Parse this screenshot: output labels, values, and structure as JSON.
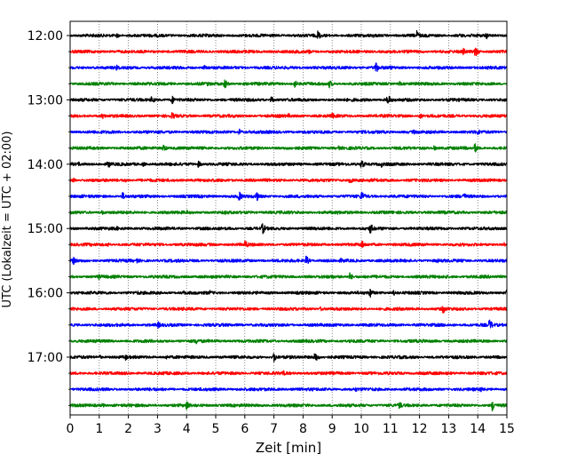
{
  "chart_data": {
    "type": "line",
    "title": "",
    "xlabel": "Zeit  [min]",
    "ylabel": "UTC (Lokalzeit = UTC + 02:00)",
    "xlim": [
      0,
      15
    ],
    "x_ticks": [
      0,
      1,
      2,
      3,
      4,
      5,
      6,
      7,
      8,
      9,
      10,
      11,
      12,
      13,
      14,
      15
    ],
    "y_tick_labels": [
      "12:00",
      "13:00",
      "14:00",
      "15:00",
      "16:00",
      "17:00"
    ],
    "grid": "vertical dotted",
    "colors": [
      "#000000",
      "#ff0000",
      "#0000ff",
      "#008000"
    ],
    "row_start": "12:00",
    "row_minutes": 15,
    "series": [
      {
        "start": "12:00",
        "color": "#000000",
        "events": [
          [
            1.6,
            3
          ],
          [
            8.5,
            6
          ],
          [
            10.4,
            3
          ],
          [
            11.9,
            6
          ],
          [
            13.4,
            3
          ],
          [
            14.3,
            4
          ]
        ]
      },
      {
        "start": "12:15",
        "color": "#ff0000",
        "events": [
          [
            2.5,
            2
          ],
          [
            8.2,
            3
          ],
          [
            13.5,
            4
          ],
          [
            13.9,
            7
          ]
        ]
      },
      {
        "start": "12:30",
        "color": "#0000ff",
        "events": [
          [
            1.6,
            4
          ],
          [
            4.6,
            3
          ],
          [
            10.5,
            7
          ],
          [
            11.0,
            3
          ]
        ]
      },
      {
        "start": "12:45",
        "color": "#008000",
        "events": [
          [
            4.7,
            3
          ],
          [
            5.3,
            6
          ],
          [
            7.7,
            5
          ],
          [
            8.9,
            5
          ],
          [
            11.3,
            3
          ]
        ]
      },
      {
        "start": "13:00",
        "color": "#000000",
        "events": [
          [
            2.8,
            5
          ],
          [
            3.5,
            5
          ],
          [
            6.9,
            4
          ],
          [
            10.9,
            7
          ]
        ]
      },
      {
        "start": "13:15",
        "color": "#ff0000",
        "events": [
          [
            1.1,
            4
          ],
          [
            3.5,
            5
          ],
          [
            7.5,
            3
          ],
          [
            9.0,
            4
          ],
          [
            12.0,
            4
          ]
        ]
      },
      {
        "start": "13:30",
        "color": "#0000ff",
        "events": [
          [
            5.8,
            4
          ],
          [
            8.4,
            3
          ],
          [
            11.8,
            3
          ],
          [
            14.0,
            4
          ]
        ]
      },
      {
        "start": "13:45",
        "color": "#008000",
        "events": [
          [
            0.2,
            2
          ],
          [
            3.2,
            5
          ],
          [
            9.2,
            3
          ],
          [
            12.5,
            3
          ],
          [
            13.9,
            6
          ]
        ]
      },
      {
        "start": "14:00",
        "color": "#000000",
        "events": [
          [
            0.3,
            3
          ],
          [
            1.3,
            5
          ],
          [
            2.5,
            3
          ],
          [
            4.4,
            4
          ],
          [
            10.0,
            6
          ],
          [
            10.7,
            4
          ]
        ]
      },
      {
        "start": "14:15",
        "color": "#ff0000",
        "events": [
          [
            0.1,
            3
          ],
          [
            1.9,
            3
          ],
          [
            9.6,
            5
          ],
          [
            10.3,
            3
          ]
        ]
      },
      {
        "start": "14:30",
        "color": "#0000ff",
        "events": [
          [
            1.8,
            5
          ],
          [
            5.8,
            6
          ],
          [
            6.4,
            6
          ],
          [
            10.0,
            7
          ],
          [
            13.5,
            5
          ]
        ]
      },
      {
        "start": "14:45",
        "color": "#008000",
        "events": [
          [
            1.1,
            3
          ],
          [
            4.0,
            3
          ],
          [
            5.3,
            3
          ],
          [
            9.2,
            3
          ]
        ]
      },
      {
        "start": "15:00",
        "color": "#000000",
        "events": [
          [
            1.6,
            3
          ],
          [
            6.6,
            7
          ],
          [
            10.3,
            7
          ]
        ]
      },
      {
        "start": "15:15",
        "color": "#ff0000",
        "events": [
          [
            1.3,
            3
          ],
          [
            6.0,
            6
          ],
          [
            10.0,
            6
          ],
          [
            14.9,
            3
          ]
        ]
      },
      {
        "start": "15:30",
        "color": "#0000ff",
        "events": [
          [
            0.1,
            5
          ],
          [
            2.3,
            3
          ],
          [
            8.1,
            6
          ],
          [
            9.3,
            3
          ],
          [
            12.6,
            3
          ]
        ]
      },
      {
        "start": "15:45",
        "color": "#008000",
        "events": [
          [
            1.0,
            4
          ],
          [
            9.0,
            3
          ],
          [
            9.6,
            5
          ],
          [
            12.9,
            3
          ]
        ]
      },
      {
        "start": "16:00",
        "color": "#000000",
        "events": [
          [
            2.3,
            3
          ],
          [
            3.9,
            3
          ],
          [
            4.8,
            3
          ],
          [
            10.3,
            6
          ],
          [
            11.1,
            4
          ],
          [
            15.0,
            5
          ]
        ]
      },
      {
        "start": "16:15",
        "color": "#ff0000",
        "events": [
          [
            8.6,
            3
          ],
          [
            12.8,
            6
          ]
        ]
      },
      {
        "start": "16:30",
        "color": "#0000ff",
        "events": [
          [
            3.0,
            5
          ],
          [
            14.4,
            7
          ]
        ]
      },
      {
        "start": "16:45",
        "color": "#008000",
        "events": [
          [
            4.3,
            5
          ],
          [
            9.6,
            3
          ]
        ]
      },
      {
        "start": "17:00",
        "color": "#000000",
        "events": [
          [
            1.0,
            3
          ],
          [
            1.9,
            4
          ],
          [
            3.3,
            3
          ],
          [
            7.0,
            6
          ],
          [
            8.4,
            7
          ]
        ]
      },
      {
        "start": "17:15",
        "color": "#ff0000",
        "events": [
          [
            3.2,
            3
          ],
          [
            7.3,
            4
          ],
          [
            8.9,
            3
          ]
        ]
      },
      {
        "start": "17:30",
        "color": "#0000ff",
        "events": [
          [
            7.6,
            3
          ],
          [
            9.8,
            3
          ],
          [
            14.1,
            4
          ]
        ]
      },
      {
        "start": "17:45",
        "color": "#008000",
        "events": [
          [
            1.1,
            3
          ],
          [
            4.0,
            6
          ],
          [
            11.3,
            5
          ],
          [
            14.5,
            7
          ]
        ]
      }
    ]
  }
}
